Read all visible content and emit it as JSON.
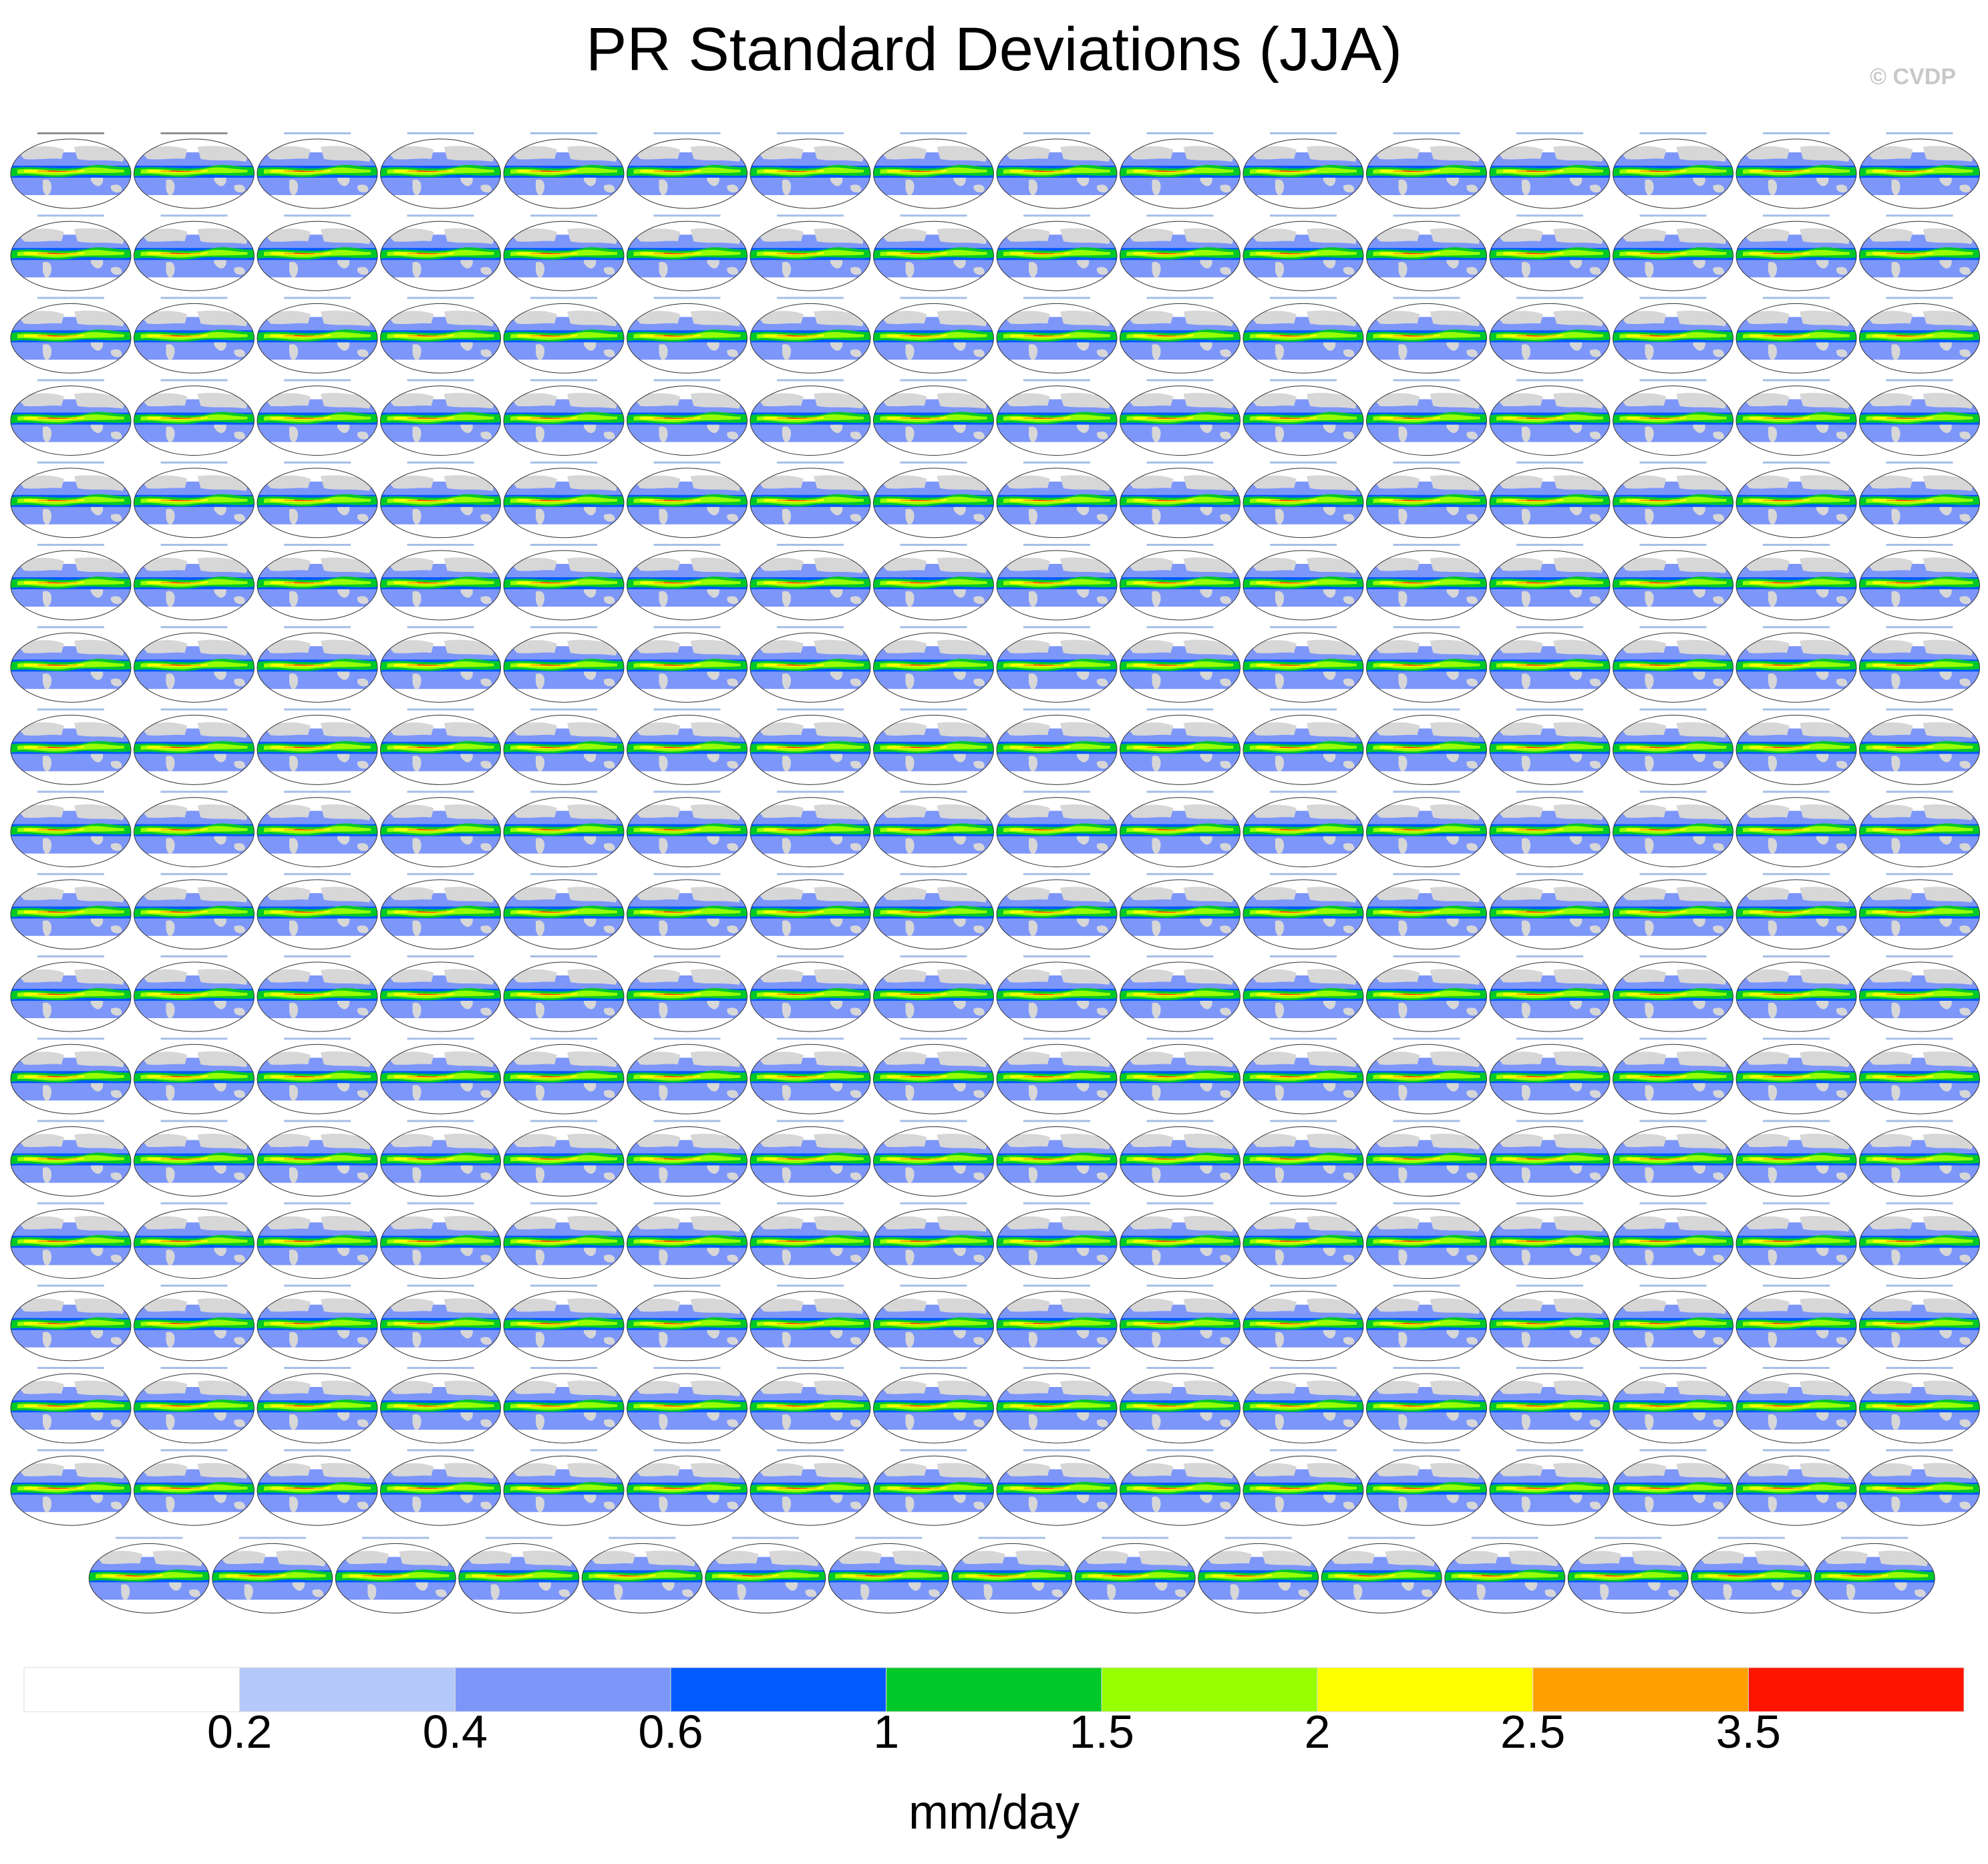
{
  "title": "PR Standard Deviations (JJA)",
  "copyright": "© CVDP",
  "chart_data": {
    "type": "heatmap",
    "title": "PR Standard Deviations (JJA)",
    "description": "Small multiples of global maps of JJA precipitation standard deviation; observations followed by large-ensemble model members",
    "panel_rows": [
      16,
      16,
      16,
      16,
      16,
      16,
      16,
      16,
      16,
      16,
      16,
      16,
      16,
      16,
      16,
      16,
      16,
      15
    ],
    "panel_total": 287,
    "colors": {
      "land": "#d7d7d7",
      "outline": "#333333"
    },
    "colorbar": {
      "units": "mm/day",
      "tick_labels": [
        "0.2",
        "0.4",
        "0.6",
        "1",
        "1.5",
        "2",
        "2.5",
        "3.5"
      ],
      "levels": [
        0.2,
        0.4,
        0.6,
        1,
        1.5,
        2,
        2.5,
        3.5
      ],
      "colors": [
        "#ffffff",
        "#b4c8fa",
        "#7d96fa",
        "#005aff",
        "#00c828",
        "#96ff00",
        "#ffff00",
        "#ffa000",
        "#ff1400"
      ]
    }
  }
}
